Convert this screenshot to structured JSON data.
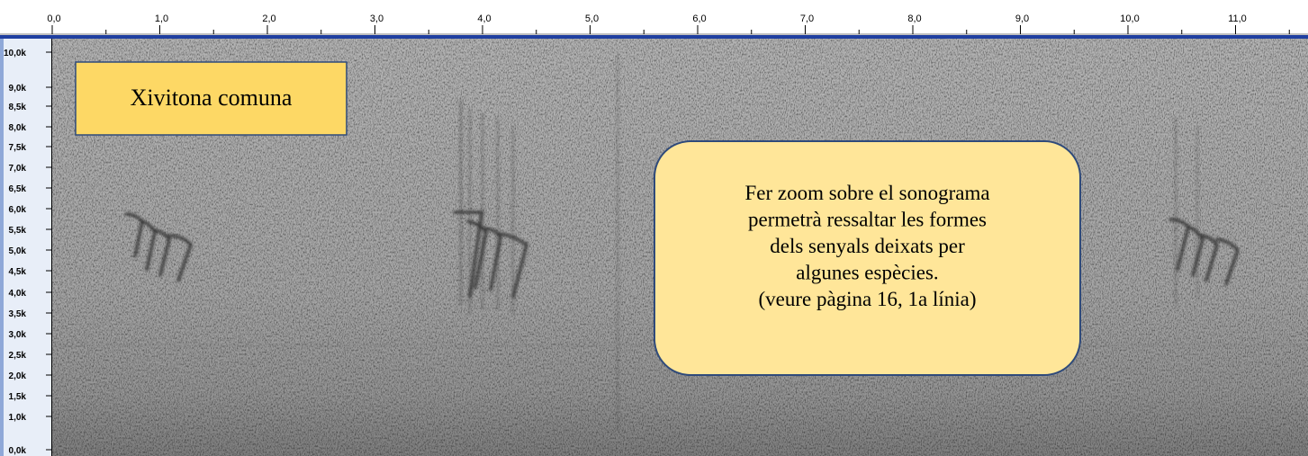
{
  "time_ruler": {
    "labels": [
      "0,0",
      "1,0",
      "2,0",
      "3,0",
      "4,0",
      "5,0",
      "6,0",
      "7,0",
      "8,0",
      "9,0",
      "10,0",
      "11,0"
    ]
  },
  "frequency_axis": {
    "labels": [
      "10,0k",
      "9,0k",
      "8,5k",
      "8,0k",
      "7,5k",
      "7,0k",
      "6,5k",
      "6,0k",
      "5,5k",
      "5,0k",
      "4,5k",
      "4,0k",
      "3,5k",
      "3,0k",
      "2,5k",
      "2,0k",
      "1,5k",
      "1,0k",
      "0,0k"
    ]
  },
  "annotations": [
    {
      "text": "Xivitona comuna"
    },
    {
      "lines": [
        "Fer zoom sobre el sonograma",
        "permetrà ressaltar les formes",
        "dels senyals deixats per",
        "algunes espècies.",
        "(veure pàgina 16, 1a línia)"
      ]
    }
  ]
}
